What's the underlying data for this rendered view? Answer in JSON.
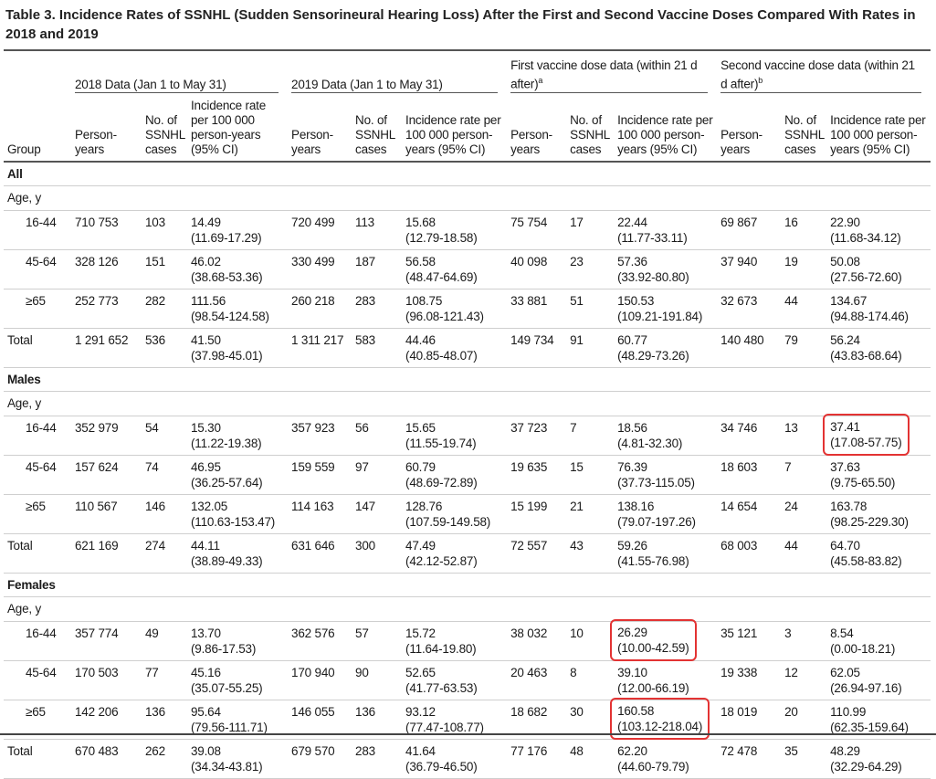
{
  "title": "Table 3. Incidence Rates of SSNHL (Sudden Sensorineural Hearing Loss) After the First and Second Vaccine Doses Compared With Rates in 2018 and 2019",
  "header": {
    "group": "Group",
    "groups": [
      "2018 Data (Jan 1 to May 31)",
      "2019 Data (Jan 1 to May 31)",
      "First vaccine dose data (within 21 d after)",
      "Second vaccine dose data (within 21 d after)"
    ],
    "group_superscripts": [
      "",
      "",
      "a",
      "b"
    ],
    "person_years": "Person-years",
    "cases_2018": "No. of SSNHL cases",
    "cases_other": "No. of SSNHL cases",
    "rate": "Incidence rate per 100 000 person-years (95% CI)"
  },
  "sections": [
    {
      "label": "All",
      "age_label": "Age, y",
      "rows": [
        {
          "group": "16-44",
          "cells": [
            [
              "710 753",
              "103",
              "14.49",
              "(11.69-17.29)"
            ],
            [
              "720 499",
              "113",
              "15.68",
              "(12.79-18.58)"
            ],
            [
              "75 754",
              "17",
              "22.44",
              "(11.77-33.11)"
            ],
            [
              "69 867",
              "16",
              "22.90",
              "(11.68-34.12)"
            ]
          ]
        },
        {
          "group": "45-64",
          "cells": [
            [
              "328 126",
              "151",
              "46.02",
              "(38.68-53.36)"
            ],
            [
              "330 499",
              "187",
              "56.58",
              "(48.47-64.69)"
            ],
            [
              "40 098",
              "23",
              "57.36",
              "(33.92-80.80)"
            ],
            [
              "37 940",
              "19",
              "50.08",
              "(27.56-72.60)"
            ]
          ]
        },
        {
          "group": "≥65",
          "cells": [
            [
              "252 773",
              "282",
              "111.56",
              "(98.54-124.58)"
            ],
            [
              "260 218",
              "283",
              "108.75",
              "(96.08-121.43)"
            ],
            [
              "33 881",
              "51",
              "150.53",
              "(109.21-191.84)"
            ],
            [
              "32 673",
              "44",
              "134.67",
              "(94.88-174.46)"
            ]
          ]
        },
        {
          "group": "Total",
          "total": true,
          "cells": [
            [
              "1 291 652",
              "536",
              "41.50",
              "(37.98-45.01)"
            ],
            [
              "1 311 217",
              "583",
              "44.46",
              "(40.85-48.07)"
            ],
            [
              "149 734",
              "91",
              "60.77",
              "(48.29-73.26)"
            ],
            [
              "140 480",
              "79",
              "56.24",
              "(43.83-68.64)"
            ]
          ]
        }
      ]
    },
    {
      "label": "Males",
      "age_label": "Age, y",
      "rows": [
        {
          "group": "16-44",
          "highlight": [
            3
          ],
          "cells": [
            [
              "352 979",
              "54",
              "15.30",
              "(11.22-19.38)"
            ],
            [
              "357 923",
              "56",
              "15.65",
              "(11.55-19.74)"
            ],
            [
              "37 723",
              "7",
              "18.56",
              "(4.81-32.30)"
            ],
            [
              "34 746",
              "13",
              "37.41",
              "(17.08-57.75)"
            ]
          ]
        },
        {
          "group": "45-64",
          "cells": [
            [
              "157 624",
              "74",
              "46.95",
              "(36.25-57.64)"
            ],
            [
              "159 559",
              "97",
              "60.79",
              "(48.69-72.89)"
            ],
            [
              "19 635",
              "15",
              "76.39",
              "(37.73-115.05)"
            ],
            [
              "18 603",
              "7",
              "37.63",
              "(9.75-65.50)"
            ]
          ]
        },
        {
          "group": "≥65",
          "cells": [
            [
              "110 567",
              "146",
              "132.05",
              "(110.63-153.47)"
            ],
            [
              "114 163",
              "147",
              "128.76",
              "(107.59-149.58)"
            ],
            [
              "15 199",
              "21",
              "138.16",
              "(79.07-197.26)"
            ],
            [
              "14 654",
              "24",
              "163.78",
              "(98.25-229.30)"
            ]
          ]
        },
        {
          "group": "Total",
          "total": true,
          "cells": [
            [
              "621 169",
              "274",
              "44.11",
              "(38.89-49.33)"
            ],
            [
              "631 646",
              "300",
              "47.49",
              "(42.12-52.87)"
            ],
            [
              "72 557",
              "43",
              "59.26",
              "(41.55-76.98)"
            ],
            [
              "68 003",
              "44",
              "64.70",
              "(45.58-83.82)"
            ]
          ]
        }
      ]
    },
    {
      "label": "Females",
      "age_label": "Age, y",
      "rows": [
        {
          "group": "16-44",
          "highlight": [
            2
          ],
          "cells": [
            [
              "357 774",
              "49",
              "13.70",
              "(9.86-17.53)"
            ],
            [
              "362 576",
              "57",
              "15.72",
              "(11.64-19.80)"
            ],
            [
              "38 032",
              "10",
              "26.29",
              "(10.00-42.59)"
            ],
            [
              "35 121",
              "3",
              "8.54",
              "(0.00-18.21)"
            ]
          ]
        },
        {
          "group": "45-64",
          "cells": [
            [
              "170 503",
              "77",
              "45.16",
              "(35.07-55.25)"
            ],
            [
              "170 940",
              "90",
              "52.65",
              "(41.77-63.53)"
            ],
            [
              "20 463",
              "8",
              "39.10",
              "(12.00-66.19)"
            ],
            [
              "19 338",
              "12",
              "62.05",
              "(26.94-97.16)"
            ]
          ]
        },
        {
          "group": "≥65",
          "highlight": [
            2
          ],
          "cells": [
            [
              "142 206",
              "136",
              "95.64",
              "(79.56-111.71)"
            ],
            [
              "146 055",
              "136",
              "93.12",
              "(77.47-108.77)"
            ],
            [
              "18 682",
              "30",
              "160.58",
              "(103.12-218.04)"
            ],
            [
              "18 019",
              "20",
              "110.99",
              "(62.35-159.64)"
            ]
          ]
        },
        {
          "group": "Total",
          "total": true,
          "cells": [
            [
              "670 483",
              "262",
              "39.08",
              "(34.34-43.81)"
            ],
            [
              "679 570",
              "283",
              "41.64",
              "(36.79-46.50)"
            ],
            [
              "77 176",
              "48",
              "62.20",
              "(44.60-79.79)"
            ],
            [
              "72 478",
              "35",
              "48.29",
              "(32.29-64.29)"
            ]
          ]
        }
      ]
    }
  ],
  "colors": {
    "highlight": "#e33333",
    "rule": "#555555"
  }
}
